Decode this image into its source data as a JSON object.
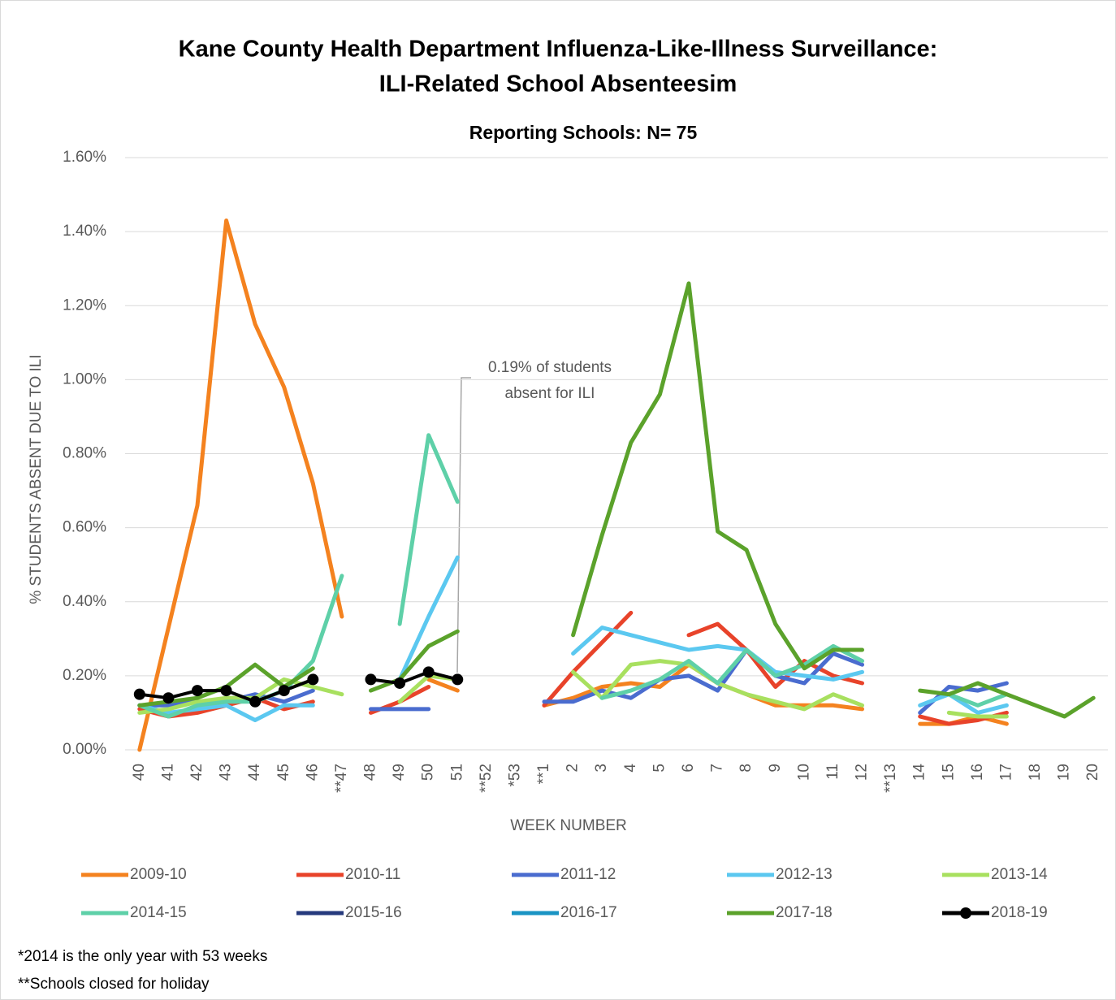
{
  "chart_data": {
    "type": "line",
    "title": [
      "Kane County Health Department Influenza-Like-Illness Surveillance:",
      "ILI-Related School Absenteesim"
    ],
    "subtitle": "Reporting Schools: N= 75",
    "y_label": "% STUDENTS ABSENT DUE TO ILI",
    "x_label": "WEEK NUMBER",
    "categories": [
      "40",
      "41",
      "42",
      "43",
      "44",
      "45",
      "46",
      "**47",
      "48",
      "49",
      "50",
      "51",
      "**52",
      "*53",
      "**1",
      "2",
      "3",
      "4",
      "5",
      "6",
      "7",
      "8",
      "9",
      "10",
      "11",
      "12",
      "**13",
      "14",
      "15",
      "16",
      "17",
      "18",
      "19",
      "20"
    ],
    "ylim": [
      0,
      1.6
    ],
    "yticks": [
      {
        "value": 0,
        "label": "0.00%"
      },
      {
        "value": 0.2,
        "label": "0.20%"
      },
      {
        "value": 0.4,
        "label": "0.40%"
      },
      {
        "value": 0.6,
        "label": "0.60%"
      },
      {
        "value": 0.8,
        "label": "0.80%"
      },
      {
        "value": 1.0,
        "label": "1.00%"
      },
      {
        "value": 1.2,
        "label": "1.20%"
      },
      {
        "value": 1.4,
        "label": "1.40%"
      },
      {
        "value": 1.6,
        "label": "1.60%"
      }
    ],
    "grid": true,
    "series": [
      {
        "name": "2009-10",
        "color": "#f4821f",
        "values": [
          0,
          0.33,
          0.66,
          1.43,
          1.15,
          0.98,
          0.72,
          0.36,
          null,
          null,
          0.19,
          0.16,
          null,
          null,
          0.12,
          0.14,
          0.17,
          0.18,
          0.17,
          0.23,
          0.18,
          0.15,
          0.12,
          0.12,
          0.12,
          0.11,
          null,
          0.07,
          0.07,
          0.09,
          0.07,
          null,
          null,
          null
        ]
      },
      {
        "name": "2010-11",
        "color": "#e8432a",
        "values": [
          0.11,
          0.09,
          0.1,
          0.12,
          0.14,
          0.11,
          0.13,
          null,
          0.1,
          0.13,
          0.17,
          null,
          null,
          null,
          0.12,
          0.21,
          0.29,
          0.37,
          null,
          0.31,
          0.34,
          0.27,
          0.17,
          0.24,
          0.2,
          0.18,
          null,
          0.09,
          0.07,
          0.08,
          0.1,
          null,
          null,
          null
        ]
      },
      {
        "name": "2011-12",
        "color": "#4a6ccf",
        "values": [
          0.12,
          0.12,
          0.13,
          0.13,
          0.15,
          0.13,
          0.16,
          null,
          0.11,
          0.11,
          0.11,
          null,
          null,
          null,
          0.13,
          0.13,
          0.16,
          0.14,
          0.19,
          0.2,
          0.16,
          0.27,
          0.2,
          0.18,
          0.26,
          0.23,
          null,
          0.1,
          0.17,
          0.16,
          0.18,
          null,
          null,
          null
        ]
      },
      {
        "name": "2012-13",
        "color": "#5bc8f0",
        "values": [
          0.12,
          0.1,
          0.11,
          0.12,
          0.08,
          0.12,
          0.12,
          null,
          null,
          0.19,
          0.36,
          0.52,
          null,
          null,
          null,
          0.26,
          0.33,
          0.31,
          0.29,
          0.27,
          0.28,
          0.27,
          0.21,
          0.2,
          0.19,
          0.21,
          null,
          0.12,
          0.15,
          0.1,
          0.12,
          null,
          null,
          null
        ]
      },
      {
        "name": "2013-14",
        "color": "#a8e05f",
        "values": [
          0.1,
          0.11,
          0.13,
          0.14,
          0.14,
          0.19,
          0.17,
          0.15,
          null,
          0.13,
          0.2,
          0.19,
          null,
          null,
          null,
          0.21,
          0.14,
          0.23,
          0.24,
          0.23,
          0.18,
          0.15,
          0.13,
          0.11,
          0.15,
          0.12,
          null,
          null,
          0.1,
          0.09,
          0.09,
          null,
          null,
          null
        ]
      },
      {
        "name": "2014-15",
        "color": "#5ed0a8",
        "values": [
          0.12,
          0.09,
          0.12,
          0.13,
          0.13,
          0.16,
          0.24,
          0.47,
          null,
          0.34,
          0.85,
          0.67,
          null,
          null,
          null,
          null,
          0.14,
          0.16,
          0.19,
          0.24,
          0.18,
          0.27,
          0.2,
          0.23,
          0.28,
          0.24,
          null,
          null,
          0.15,
          0.12,
          0.15,
          null,
          null,
          null
        ]
      },
      {
        "name": "2015-16",
        "color": "#263a7d",
        "values": [
          null,
          null,
          null,
          null,
          null,
          null,
          null,
          null,
          null,
          null,
          null,
          null,
          null,
          null,
          null,
          null,
          null,
          null,
          null,
          null,
          null,
          null,
          null,
          null,
          null,
          null,
          null,
          null,
          null,
          null,
          null,
          null,
          null,
          null
        ]
      },
      {
        "name": "2016-17",
        "color": "#1a94c4",
        "values": [
          null,
          null,
          null,
          null,
          null,
          null,
          null,
          null,
          null,
          null,
          null,
          null,
          null,
          null,
          null,
          null,
          null,
          null,
          null,
          null,
          null,
          null,
          null,
          null,
          null,
          null,
          null,
          null,
          null,
          null,
          null,
          null,
          null,
          null
        ]
      },
      {
        "name": "2017-18",
        "color": "#5ba22b",
        "values": [
          0.12,
          0.13,
          0.14,
          0.17,
          0.23,
          0.17,
          0.22,
          null,
          0.16,
          0.19,
          0.28,
          0.32,
          null,
          null,
          null,
          0.31,
          0.58,
          0.83,
          0.96,
          1.26,
          0.59,
          0.54,
          0.34,
          0.22,
          0.27,
          0.27,
          null,
          0.16,
          0.15,
          0.18,
          0.15,
          0.12,
          0.09,
          0.14
        ]
      },
      {
        "name": "2018-19",
        "color": "#000000",
        "markers": true,
        "values": [
          0.15,
          0.14,
          0.16,
          0.16,
          0.13,
          0.16,
          0.19,
          null,
          0.19,
          0.18,
          0.21,
          0.19,
          null,
          null,
          null,
          null,
          null,
          null,
          null,
          null,
          null,
          null,
          null,
          null,
          null,
          null,
          null,
          null,
          null,
          null,
          null,
          null,
          null,
          null
        ]
      }
    ],
    "annotation": [
      "0.19% of students",
      "absent for ILI"
    ],
    "footnotes": [
      "*2014 is the only year with 53 weeks",
      "**Schools closed for holiday"
    ]
  }
}
